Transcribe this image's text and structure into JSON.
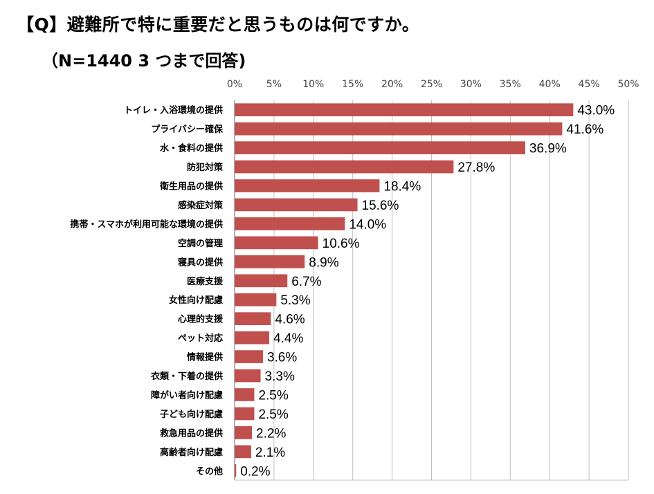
{
  "title": "【Q】避難所で特に重要だと思うものは何ですか。",
  "subtitle": "（N=1440 3 つまで回答)",
  "chart_data": {
    "type": "bar",
    "orientation": "horizontal",
    "bar_color": "#C0504D",
    "xlim": [
      0,
      50
    ],
    "ticks": [
      0,
      5,
      10,
      15,
      20,
      25,
      30,
      35,
      40,
      45,
      50
    ],
    "tick_labels": [
      "0%",
      "5%",
      "10%",
      "15%",
      "20%",
      "25%",
      "30%",
      "35%",
      "40%",
      "45%",
      "50%"
    ],
    "grid": true,
    "categories": [
      "トイレ・入浴環境の提供",
      "プライバシー確保",
      "水・食料の提供",
      "防犯対策",
      "衛生用品の提供",
      "感染症対策",
      "携帯・スマホが利用可能な環境の提供",
      "空調の管理",
      "寝具の提供",
      "医療支援",
      "女性向け配慮",
      "心理的支援",
      "ペット対応",
      "情報提供",
      "衣類・下着の提供",
      "障がい者向け配慮",
      "子ども向け配慮",
      "救急用品の提供",
      "高齢者向け配慮",
      "その他"
    ],
    "values": [
      43.0,
      41.6,
      36.9,
      27.8,
      18.4,
      15.6,
      14.0,
      10.6,
      8.9,
      6.7,
      5.3,
      4.6,
      4.4,
      3.6,
      3.3,
      2.5,
      2.5,
      2.2,
      2.1,
      0.2
    ],
    "value_labels": [
      "43.0%",
      "41.6%",
      "36.9%",
      "27.8%",
      "18.4%",
      "15.6%",
      "14.0%",
      "10.6%",
      "8.9%",
      "6.7%",
      "5.3%",
      "4.6%",
      "4.4%",
      "3.6%",
      "3.3%",
      "2.5%",
      "2.5%",
      "2.2%",
      "2.1%",
      "0.2%"
    ]
  }
}
